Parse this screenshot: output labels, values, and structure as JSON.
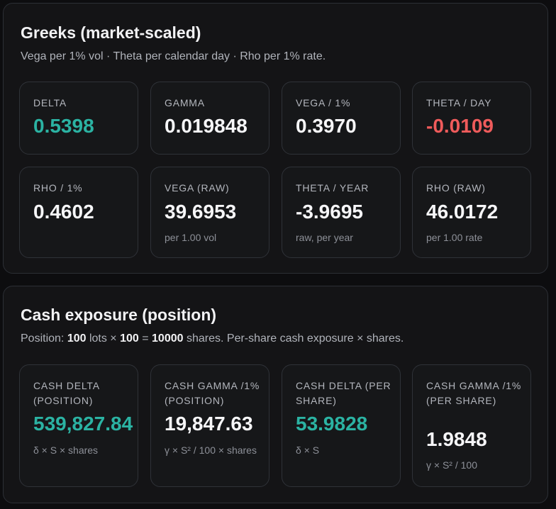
{
  "greeks": {
    "title": "Greeks (market-scaled)",
    "subtitle": "Vega per 1% vol · Theta per calendar day · Rho per 1% rate.",
    "cards": [
      {
        "label": "DELTA",
        "value": "0.5398",
        "note": "",
        "tone": "positive"
      },
      {
        "label": "GAMMA",
        "value": "0.019848",
        "note": "",
        "tone": "neutral"
      },
      {
        "label": "VEGA / 1%",
        "value": "0.3970",
        "note": "",
        "tone": "neutral"
      },
      {
        "label": "THETA / DAY",
        "value": "-0.0109",
        "note": "",
        "tone": "negative"
      },
      {
        "label": "RHO / 1%",
        "value": "0.4602",
        "note": "",
        "tone": "neutral"
      },
      {
        "label": "VEGA (RAW)",
        "value": "39.6953",
        "note": "per 1.00 vol",
        "tone": "neutral"
      },
      {
        "label": "THETA / YEAR",
        "value": "-3.9695",
        "note": "raw, per year",
        "tone": "neutral"
      },
      {
        "label": "RHO (RAW)",
        "value": "46.0172",
        "note": "per 1.00 rate",
        "tone": "neutral"
      }
    ]
  },
  "cash": {
    "title": "Cash exposure (position)",
    "subtitle": {
      "prefix": "Position: ",
      "lots": "100",
      "lots_text": " lots × ",
      "multiplier": "100",
      "equals": " = ",
      "shares": "10000",
      "suffix": " shares. Per-share cash exposure × shares."
    },
    "cards": [
      {
        "label": "CASH DELTA (POSITION)",
        "value": "539,827.84",
        "note": "δ × S × shares",
        "tone": "positive"
      },
      {
        "label": "CASH GAMMA /1% (POSITION)",
        "value": "19,847.63",
        "note": "γ × S² / 100 × shares",
        "tone": "neutral"
      },
      {
        "label": "CASH DELTA (PER SHARE)",
        "value": "53.9828",
        "note": "δ × S",
        "tone": "positive"
      },
      {
        "label": "CASH GAMMA /1% (PER SHARE)",
        "value": "1.9848",
        "note": "γ × S² / 100",
        "tone": "neutral"
      }
    ]
  },
  "colors": {
    "positive": "#2bb3a3",
    "negative": "#ef5b5b",
    "neutral": "#f6f6f8"
  }
}
